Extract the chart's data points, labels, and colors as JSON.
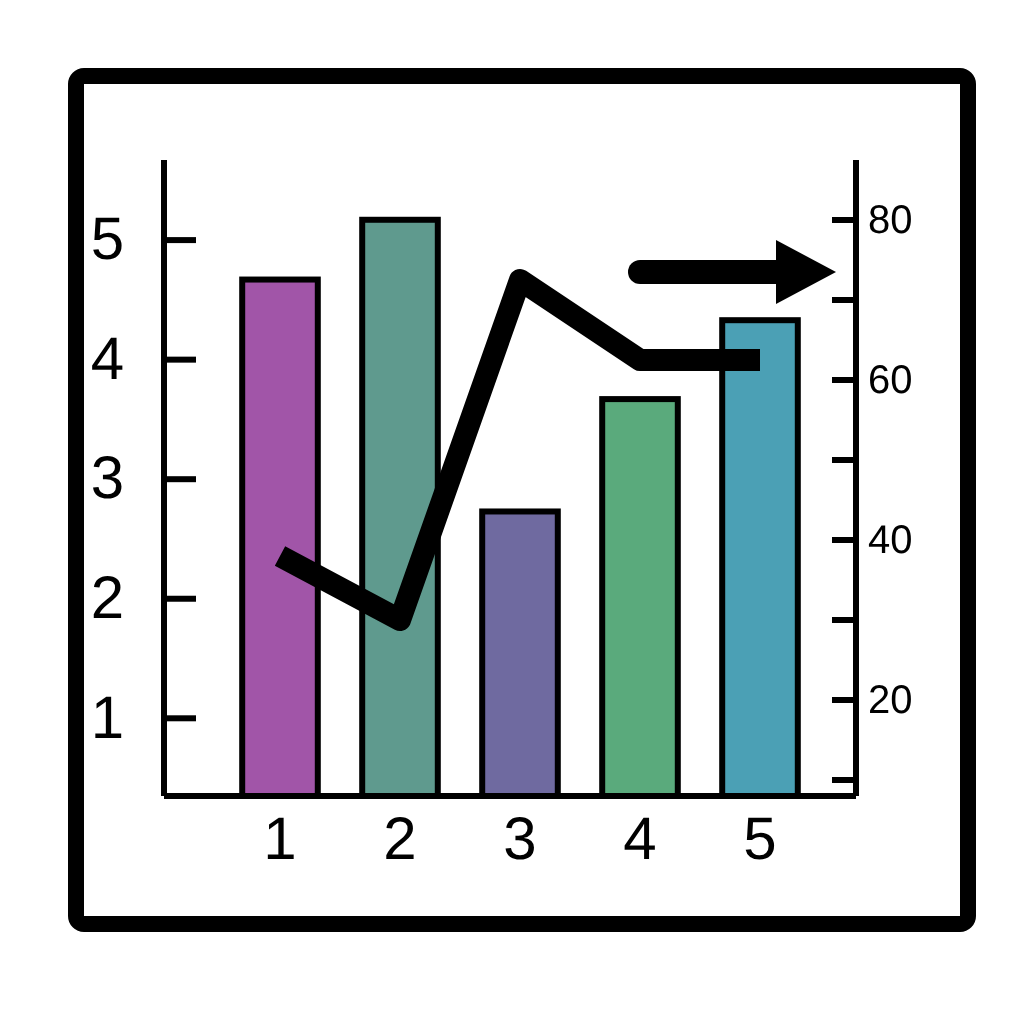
{
  "chart_data": {
    "type": "bar",
    "categories": [
      "1",
      "2",
      "3",
      "4",
      "5"
    ],
    "series": [
      {
        "colors": [
          "#a155a8",
          "#5f9a8e",
          "#6f6aa0",
          "#5aaa7c",
          "#4ba0b5"
        ],
        "values": [
          4.67,
          5.17,
          2.73,
          3.67,
          4.33
        ]
      },
      {
        "type": "line",
        "axis": "y2",
        "color": "#000000",
        "values": [
          38,
          30,
          72.5,
          62.5,
          62.5
        ]
      }
    ],
    "ylim": [
      0.35,
      5.67
    ],
    "yticks": [
      1,
      2,
      3,
      4,
      5
    ],
    "y2lim": [
      8,
      87.5
    ],
    "y2ticks": [
      {
        "value": 10,
        "label": null
      },
      20,
      {
        "value": 30,
        "label": null
      },
      40,
      {
        "value": 50,
        "label": null
      },
      60,
      {
        "value": 70,
        "label": null
      },
      80
    ],
    "grid": false,
    "marker": "none",
    "line_style": "solid"
  }
}
